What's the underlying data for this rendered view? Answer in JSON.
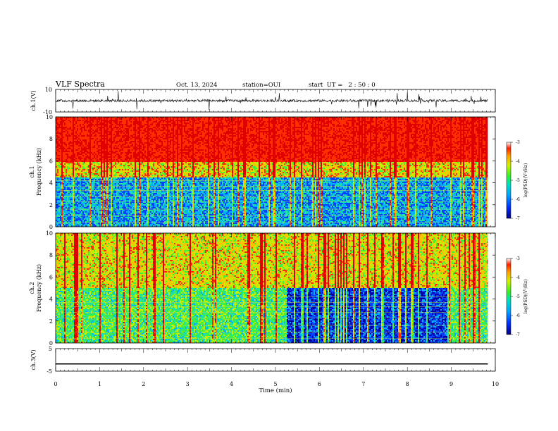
{
  "header": {
    "title": "VLF Spectra",
    "date": "Oct. 13, 2024",
    "station": "station=OUI",
    "start": "start  UT =   2 : 50 : 0"
  },
  "colors": {
    "waveform": "#000000",
    "scale": [
      "#0000a0",
      "#0040ff",
      "#00b0ff",
      "#20e0a0",
      "#40f040",
      "#c0f000",
      "#ffc000",
      "#ff3000",
      "#e00000"
    ]
  },
  "chart_data": [
    {
      "type": "line",
      "name": "ch1-waveform",
      "ylabel": "ch.1(V)",
      "ylim": [
        -10,
        10
      ],
      "y_ticklabels": [
        "10",
        "-10"
      ],
      "baseline": 0,
      "xlim": [
        0,
        9.83
      ]
    },
    {
      "type": "heatmap",
      "name": "ch1-spectrogram",
      "ylabel": "Frequency (kHz)",
      "channel_label": "ch.1",
      "ylim": [
        0,
        10
      ],
      "y_ticklabels": [
        "0",
        "2",
        "4",
        "6",
        "8",
        "10"
      ],
      "xlim": [
        0,
        9.83
      ],
      "colorbar": {
        "label": "log(PSD)(V²/Hz)",
        "range": [
          -7,
          -3
        ],
        "ticklabels": [
          "-3",
          "-4",
          "-5",
          "-6",
          "-7"
        ]
      }
    },
    {
      "type": "heatmap",
      "name": "ch2-spectrogram",
      "ylabel": "Frequency (kHz)",
      "channel_label": "ch.2",
      "ylim": [
        0,
        10
      ],
      "y_ticklabels": [
        "0",
        "2",
        "4",
        "6",
        "8",
        "10"
      ],
      "xlim": [
        0,
        9.83
      ],
      "colorbar": {
        "label": "log(PSD)(V²/Hz)",
        "range": [
          -7,
          -3
        ],
        "ticklabels": [
          "-3",
          "-4",
          "-5",
          "-6",
          "-7"
        ]
      }
    },
    {
      "type": "line",
      "name": "ch3-waveform",
      "ylabel": "ch.3(V)",
      "ylim": [
        -5,
        5
      ],
      "y_ticklabels": [
        "5",
        "-5"
      ],
      "x": [
        0,
        9.83
      ],
      "values": [
        -1.8,
        -1.8
      ]
    }
  ],
  "xaxis": {
    "label": "Time (min)",
    "xlim": [
      0,
      10
    ],
    "ticklabels": [
      "0",
      "1",
      "2",
      "3",
      "4",
      "5",
      "6",
      "7",
      "8",
      "9",
      "10"
    ]
  }
}
